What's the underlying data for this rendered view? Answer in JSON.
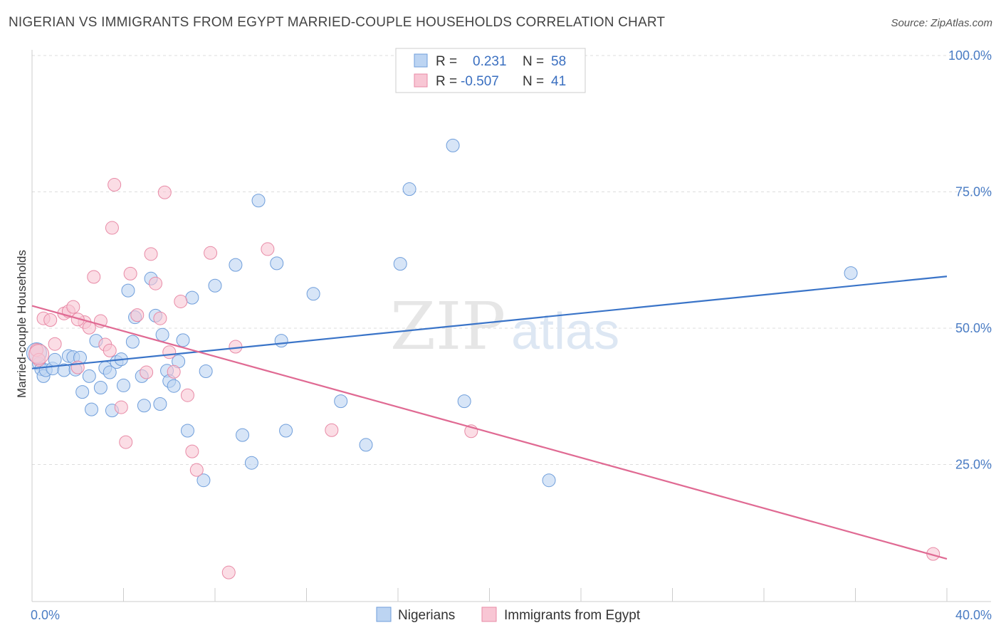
{
  "title": "NIGERIAN VS IMMIGRANTS FROM EGYPT MARRIED-COUPLE HOUSEHOLDS CORRELATION CHART",
  "source": "Source: ZipAtlas.com",
  "watermark": {
    "zip": "ZIP",
    "atlas": "atlas"
  },
  "chart_data": {
    "type": "scatter",
    "ylabel": "Married-couple Households",
    "xlim": [
      0,
      40
    ],
    "ylim": [
      0,
      100
    ],
    "x_ticks": [
      "0.0%",
      "40.0%"
    ],
    "y_ticks": [
      {
        "value": 25,
        "label": "25.0%"
      },
      {
        "value": 50,
        "label": "50.0%"
      },
      {
        "value": 75,
        "label": "75.0%"
      },
      {
        "value": 100,
        "label": "100.0%"
      }
    ],
    "grid": true,
    "legend_placement": "top-center",
    "legend": [
      {
        "r_label": "R =",
        "r_value": "0.231",
        "n_label": "N =",
        "n_value": "58"
      },
      {
        "r_label": "R =",
        "r_value": "-0.507",
        "n_label": "N =",
        "n_value": "41"
      }
    ],
    "series": [
      {
        "name": "Nigerians",
        "fill": "#bcd4f2",
        "stroke": "#6f9edb",
        "trend_color": "#3a74c8",
        "trend": [
          [
            0,
            42.6
          ],
          [
            40,
            59.5
          ]
        ],
        "points": [
          [
            0.3,
            43.5
          ],
          [
            0.4,
            42.5
          ],
          [
            0.5,
            41.2
          ],
          [
            0.6,
            42.3
          ],
          [
            0.9,
            42.6
          ],
          [
            1.0,
            44.2
          ],
          [
            1.4,
            42.3
          ],
          [
            1.6,
            44.9
          ],
          [
            1.8,
            44.7
          ],
          [
            1.9,
            42.4
          ],
          [
            2.1,
            44.6
          ],
          [
            2.2,
            38.3
          ],
          [
            2.5,
            41.2
          ],
          [
            2.6,
            35.1
          ],
          [
            2.8,
            47.7
          ],
          [
            3.0,
            39.1
          ],
          [
            3.2,
            42.7
          ],
          [
            3.4,
            41.9
          ],
          [
            3.5,
            34.9
          ],
          [
            3.7,
            43.8
          ],
          [
            3.9,
            44.3
          ],
          [
            4.0,
            39.5
          ],
          [
            4.2,
            56.9
          ],
          [
            4.4,
            47.5
          ],
          [
            4.5,
            52.0
          ],
          [
            4.8,
            41.2
          ],
          [
            4.9,
            35.8
          ],
          [
            5.2,
            59.1
          ],
          [
            5.4,
            52.3
          ],
          [
            5.6,
            36.1
          ],
          [
            5.7,
            48.8
          ],
          [
            5.9,
            42.2
          ],
          [
            6.0,
            40.3
          ],
          [
            6.2,
            39.4
          ],
          [
            6.4,
            43.9
          ],
          [
            6.6,
            47.8
          ],
          [
            6.8,
            31.2
          ],
          [
            7.0,
            55.6
          ],
          [
            7.5,
            22.1
          ],
          [
            7.6,
            42.1
          ],
          [
            8.0,
            57.8
          ],
          [
            8.9,
            61.6
          ],
          [
            9.2,
            30.4
          ],
          [
            9.6,
            25.3
          ],
          [
            9.9,
            73.4
          ],
          [
            10.7,
            61.9
          ],
          [
            10.9,
            47.7
          ],
          [
            11.1,
            31.2
          ],
          [
            12.3,
            56.3
          ],
          [
            13.5,
            36.6
          ],
          [
            14.6,
            28.6
          ],
          [
            16.1,
            61.8
          ],
          [
            16.5,
            75.5
          ],
          [
            18.4,
            83.5
          ],
          [
            18.9,
            36.6
          ],
          [
            22.6,
            22.1
          ],
          [
            35.8,
            60.1
          ],
          [
            0.2,
            45.5
          ]
        ]
      },
      {
        "name": "Immigrants from Egypt",
        "fill": "#f8c6d4",
        "stroke": "#e88aa6",
        "trend_color": "#e06a93",
        "trend": [
          [
            0,
            54.1
          ],
          [
            40,
            7.7
          ]
        ],
        "points": [
          [
            0.2,
            46.0
          ],
          [
            0.3,
            44.2
          ],
          [
            0.5,
            51.8
          ],
          [
            0.8,
            51.5
          ],
          [
            1.0,
            47.1
          ],
          [
            1.4,
            52.7
          ],
          [
            1.6,
            53.1
          ],
          [
            1.8,
            53.9
          ],
          [
            2.0,
            42.8
          ],
          [
            2.3,
            51.1
          ],
          [
            2.5,
            50.1
          ],
          [
            2.7,
            59.4
          ],
          [
            3.0,
            51.3
          ],
          [
            3.2,
            47.0
          ],
          [
            3.4,
            45.9
          ],
          [
            3.5,
            68.4
          ],
          [
            3.6,
            76.3
          ],
          [
            3.9,
            35.5
          ],
          [
            4.1,
            29.1
          ],
          [
            4.3,
            60.0
          ],
          [
            4.6,
            52.4
          ],
          [
            5.0,
            41.9
          ],
          [
            5.2,
            63.6
          ],
          [
            5.4,
            58.2
          ],
          [
            5.6,
            51.8
          ],
          [
            5.8,
            74.9
          ],
          [
            6.0,
            45.6
          ],
          [
            6.2,
            42.0
          ],
          [
            6.5,
            54.9
          ],
          [
            6.8,
            37.7
          ],
          [
            7.0,
            27.4
          ],
          [
            7.2,
            24.0
          ],
          [
            7.8,
            63.8
          ],
          [
            8.6,
            5.2
          ],
          [
            8.9,
            46.6
          ],
          [
            10.3,
            64.5
          ],
          [
            13.1,
            31.3
          ],
          [
            19.2,
            31.1
          ],
          [
            39.4,
            8.6
          ],
          [
            2.0,
            51.6
          ],
          [
            0.3,
            45.2
          ]
        ]
      }
    ]
  }
}
